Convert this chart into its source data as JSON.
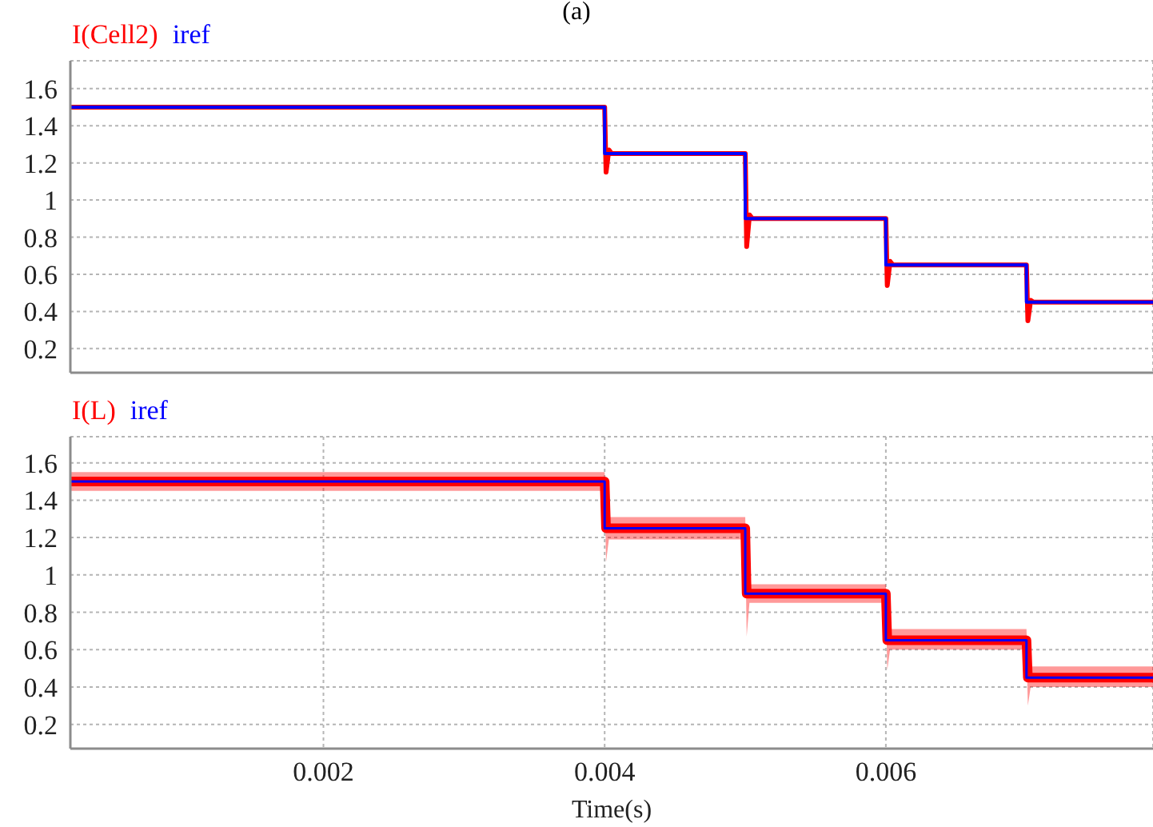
{
  "chart_data": [
    {
      "type": "line",
      "title": "(a)",
      "series": [
        {
          "name": "I(Cell2)",
          "color": "#ff0000",
          "x": [
            0.0002,
            0.004,
            0.00401,
            0.00403,
            0.00405,
            0.005,
            0.00501,
            0.00503,
            0.00505,
            0.006,
            0.00601,
            0.00603,
            0.00605,
            0.007,
            0.00701,
            0.00703,
            0.00705,
            0.0079
          ],
          "values": [
            1.5,
            1.5,
            1.15,
            1.27,
            1.25,
            1.25,
            0.75,
            0.92,
            0.9,
            0.9,
            0.54,
            0.67,
            0.65,
            0.65,
            0.35,
            0.46,
            0.45,
            0.45
          ]
        },
        {
          "name": "iref",
          "color": "#0000ff",
          "type": "step",
          "x": [
            0.0002,
            0.004,
            0.005,
            0.006,
            0.007,
            0.0079
          ],
          "values": [
            1.5,
            1.25,
            0.9,
            0.65,
            0.45,
            0.45
          ]
        }
      ],
      "xlim": [
        0.0002,
        0.0079
      ],
      "xticks": [
        0.002,
        0.004,
        0.006
      ],
      "ylim": [
        0.07,
        1.75
      ],
      "yticks": [
        0.2,
        0.4,
        0.6,
        0.8,
        1,
        1.2,
        1.4,
        1.6
      ],
      "grid": true,
      "legend": "top left",
      "tick_labels": "y"
    },
    {
      "type": "line",
      "xlabel": "Time(s)",
      "series": [
        {
          "name": "I(L)",
          "color": "#ff0000",
          "x": [
            0.0002,
            0.004,
            0.00401,
            0.00403,
            0.005,
            0.00501,
            0.00503,
            0.006,
            0.00601,
            0.00603,
            0.007,
            0.00701,
            0.00703,
            0.0079
          ],
          "values": [
            1.5,
            1.5,
            1.25,
            1.25,
            1.25,
            0.9,
            0.9,
            0.9,
            0.65,
            0.65,
            0.65,
            0.45,
            0.45,
            0.45
          ],
          "lower": [
            1.45,
            1.45,
            1.07,
            1.19,
            1.19,
            0.67,
            0.85,
            0.85,
            0.49,
            0.6,
            0.6,
            0.3,
            0.4,
            0.4
          ],
          "upper": [
            1.55,
            1.55,
            1.3,
            1.31,
            1.31,
            0.96,
            0.95,
            0.95,
            0.71,
            0.71,
            0.71,
            0.52,
            0.51,
            0.51
          ]
        },
        {
          "name": "iref",
          "color": "#0000ff",
          "type": "step",
          "x": [
            0.0002,
            0.004,
            0.005,
            0.006,
            0.007,
            0.0079
          ],
          "values": [
            1.5,
            1.25,
            0.9,
            0.65,
            0.45,
            0.45
          ]
        }
      ],
      "xlim": [
        0.0002,
        0.0079
      ],
      "xticks": [
        0.002,
        0.004,
        0.006
      ],
      "ylim": [
        0.07,
        1.74
      ],
      "yticks": [
        0.2,
        0.4,
        0.6,
        0.8,
        1,
        1.2,
        1.4,
        1.6
      ],
      "grid": true,
      "legend": "top left"
    }
  ]
}
